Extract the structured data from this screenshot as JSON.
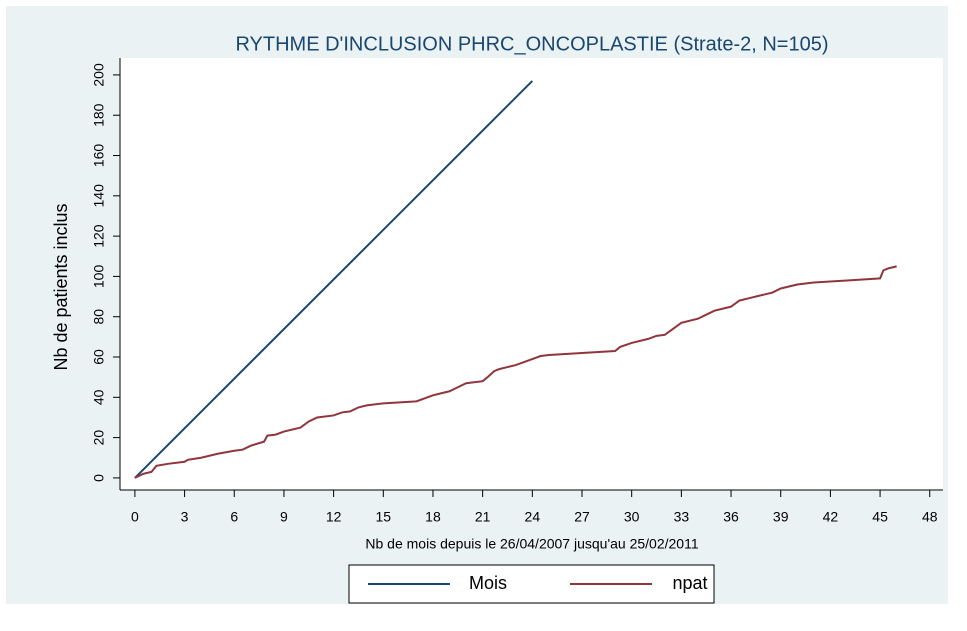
{
  "chart_data": {
    "type": "line",
    "title": "RYTHME D'INCLUSION PHRC_ONCOPLASTIE (Strate-2, N=105)",
    "xlabel": "Nb de mois depuis le 26/04/2007 jusqu'au 25/02/2011",
    "ylabel": "Nb de patients inclus",
    "xlim": [
      -0.9,
      48.8
    ],
    "ylim": [
      -6,
      208.4
    ],
    "xticks": [
      0,
      3,
      6,
      9,
      12,
      15,
      18,
      21,
      24,
      27,
      30,
      33,
      36,
      39,
      42,
      45,
      48
    ],
    "yticks": [
      0,
      20,
      40,
      60,
      80,
      100,
      120,
      140,
      160,
      180,
      200
    ],
    "legend": "bottom",
    "series": [
      {
        "name": "Mois",
        "color": "#1a476f",
        "x": [
          0,
          24
        ],
        "values": [
          0,
          197
        ]
      },
      {
        "name": "npat",
        "color": "#90353b",
        "x": [
          0,
          0.5,
          1,
          1.3,
          2,
          3,
          3.2,
          4,
          5,
          6,
          6.5,
          7,
          7.8,
          8,
          8.5,
          9,
          10,
          10.5,
          11,
          12,
          12.5,
          13,
          13.5,
          14,
          15,
          16,
          17,
          18,
          18.5,
          19,
          19.5,
          20,
          21,
          21.3,
          21.7,
          22,
          22.5,
          23,
          24,
          24.5,
          25,
          27,
          29,
          29.3,
          30,
          31,
          31.5,
          32,
          32.5,
          33,
          34,
          34.5,
          35,
          36,
          36.5,
          37,
          38,
          38.5,
          39,
          40,
          41,
          43,
          45,
          45.2,
          45.5,
          46
        ],
        "values": [
          0,
          2,
          3,
          6,
          7,
          8,
          9,
          10,
          12,
          13.5,
          14,
          16,
          18,
          21,
          21.5,
          23,
          25,
          28,
          30,
          31,
          32.5,
          33,
          35,
          36,
          37,
          37.5,
          38,
          41,
          42,
          43,
          45,
          47,
          48,
          50,
          53,
          54,
          55,
          56,
          59,
          60.5,
          61,
          62,
          63,
          65,
          67,
          69,
          70.5,
          71,
          74,
          77,
          79,
          81,
          83,
          85,
          88,
          89,
          91,
          92,
          94,
          96,
          97,
          98,
          99,
          103,
          104,
          105
        ]
      }
    ]
  }
}
